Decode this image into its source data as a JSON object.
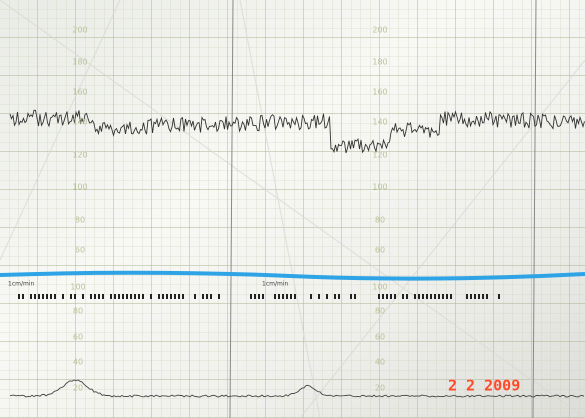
{
  "upper_scale": [
    "200",
    "180",
    "160",
    "140",
    "120",
    "100",
    "80",
    "60"
  ],
  "lower_scale": [
    "100",
    "80",
    "60",
    "40",
    "20"
  ],
  "strip_header": "1cm/min",
  "date_stamp": "2 2 2009"
}
